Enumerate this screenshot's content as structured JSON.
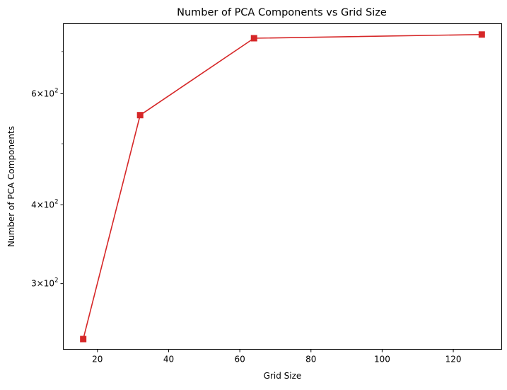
{
  "chart_data": {
    "type": "line",
    "title": "Number of PCA Components vs Grid Size",
    "xlabel": "Grid Size",
    "ylabel": "Number of PCA Components",
    "x": [
      16,
      32,
      64,
      128
    ],
    "series": [
      {
        "values": [
          245,
          555,
          735,
          745
        ],
        "color": "#d62728",
        "marker": "square"
      }
    ],
    "xlim": [
      10.4,
      133.6
    ],
    "ylim": [
      236,
      775
    ],
    "yscale": "log",
    "x_ticks": [
      {
        "value": 20,
        "label": "20"
      },
      {
        "value": 40,
        "label": "40"
      },
      {
        "value": 60,
        "label": "60"
      },
      {
        "value": 80,
        "label": "80"
      },
      {
        "value": 100,
        "label": "100"
      },
      {
        "value": 120,
        "label": "120"
      }
    ],
    "y_major_ticks": [
      {
        "value": 300,
        "mantissa": "3",
        "base": "10",
        "exp": "2"
      },
      {
        "value": 400,
        "mantissa": "4",
        "base": "10",
        "exp": "2"
      },
      {
        "value": 600,
        "mantissa": "6",
        "base": "10",
        "exp": "2"
      }
    ],
    "y_minor_ticks": [
      500,
      700
    ],
    "grid": false,
    "legend": "none"
  }
}
